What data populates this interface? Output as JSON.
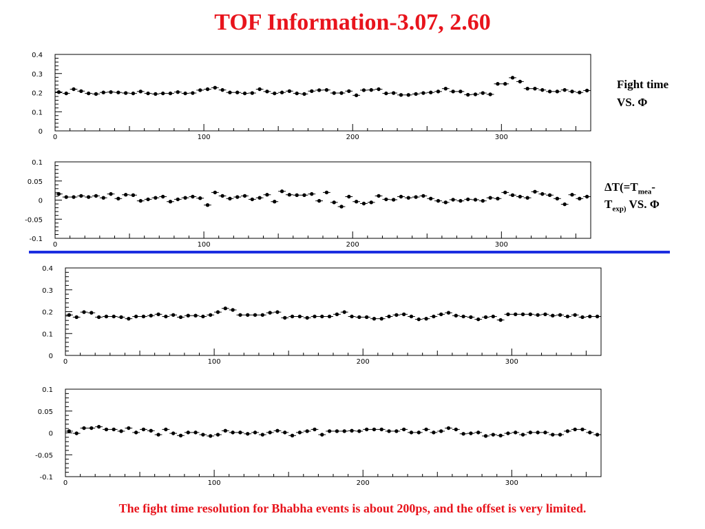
{
  "slide": {
    "title": "TOF Information-3.07, 2.60",
    "fight_label_line1": "Fight time",
    "fight_label_line2": "VS. Φ",
    "dt_label": {
      "delta": "ΔT(=T",
      "sub_mea": "mea",
      "dash": "-",
      "t": "T",
      "sub_exp": "exp)",
      "vs": " VS. Φ"
    },
    "footer": "The fight time resolution for Bhabha events is about 200ps, and the offset is very limited."
  },
  "chart_data": [
    {
      "type": "scatter",
      "title": "",
      "xlim": [
        0,
        360
      ],
      "ylim": [
        0,
        0.4
      ],
      "xticks": [
        "0",
        "100",
        "200",
        "300"
      ],
      "yticks": [
        "0",
        "0.1",
        "0.2",
        "0.3",
        "0.4"
      ],
      "x": [
        2.5,
        7.5,
        12.5,
        17.5,
        22.5,
        27.5,
        32.5,
        37.5,
        42.5,
        47.5,
        52.5,
        57.5,
        62.5,
        67.5,
        72.5,
        77.5,
        82.5,
        87.5,
        92.5,
        97.5,
        102.5,
        107.5,
        112.5,
        117.5,
        122.5,
        127.5,
        132.5,
        137.5,
        142.5,
        147.5,
        152.5,
        157.5,
        162.5,
        167.5,
        172.5,
        177.5,
        182.5,
        187.5,
        192.5,
        197.5,
        202.5,
        207.5,
        212.5,
        217.5,
        222.5,
        227.5,
        232.5,
        237.5,
        242.5,
        247.5,
        252.5,
        257.5,
        262.5,
        267.5,
        272.5,
        277.5,
        282.5,
        287.5,
        292.5,
        297.5,
        302.5,
        307.5,
        312.5,
        317.5,
        322.5,
        327.5,
        332.5,
        337.5,
        342.5,
        347.5,
        352.5,
        357.5
      ],
      "y": [
        0.203,
        0.196,
        0.218,
        0.208,
        0.196,
        0.193,
        0.201,
        0.203,
        0.201,
        0.198,
        0.196,
        0.206,
        0.196,
        0.193,
        0.196,
        0.196,
        0.203,
        0.196,
        0.198,
        0.213,
        0.218,
        0.226,
        0.214,
        0.201,
        0.201,
        0.196,
        0.198,
        0.218,
        0.206,
        0.196,
        0.201,
        0.208,
        0.196,
        0.193,
        0.208,
        0.213,
        0.214,
        0.198,
        0.198,
        0.208,
        0.186,
        0.213,
        0.214,
        0.218,
        0.196,
        0.198,
        0.188,
        0.188,
        0.193,
        0.198,
        0.201,
        0.206,
        0.221,
        0.206,
        0.206,
        0.189,
        0.191,
        0.198,
        0.191,
        0.246,
        0.246,
        0.278,
        0.258,
        0.221,
        0.221,
        0.214,
        0.206,
        0.206,
        0.214,
        0.206,
        0.201,
        0.211
      ],
      "grid": false
    },
    {
      "type": "scatter",
      "title": "",
      "xlim": [
        0,
        360
      ],
      "ylim": [
        -0.1,
        0.1
      ],
      "xticks": [
        "0",
        "100",
        "200",
        "300"
      ],
      "yticks": [
        "-0.1",
        "-0.05",
        "0",
        "0.05",
        "0.1"
      ],
      "x": [
        2.5,
        7.5,
        12.5,
        17.5,
        22.5,
        27.5,
        32.5,
        37.5,
        42.5,
        47.5,
        52.5,
        57.5,
        62.5,
        67.5,
        72.5,
        77.5,
        82.5,
        87.5,
        92.5,
        97.5,
        102.5,
        107.5,
        112.5,
        117.5,
        122.5,
        127.5,
        132.5,
        137.5,
        142.5,
        147.5,
        152.5,
        157.5,
        162.5,
        167.5,
        172.5,
        177.5,
        182.5,
        187.5,
        192.5,
        197.5,
        202.5,
        207.5,
        212.5,
        217.5,
        222.5,
        227.5,
        232.5,
        237.5,
        242.5,
        247.5,
        252.5,
        257.5,
        262.5,
        267.5,
        272.5,
        277.5,
        282.5,
        287.5,
        292.5,
        297.5,
        302.5,
        307.5,
        312.5,
        317.5,
        322.5,
        327.5,
        332.5,
        337.5,
        342.5,
        347.5,
        352.5,
        357.5
      ],
      "y": [
        0.016,
        0.008,
        0.008,
        0.011,
        0.008,
        0.011,
        0.006,
        0.016,
        0.004,
        0.014,
        0.013,
        -0.002,
        0.002,
        0.006,
        0.009,
        -0.004,
        0.002,
        0.006,
        0.009,
        0.005,
        -0.013,
        0.02,
        0.011,
        0.004,
        0.008,
        0.011,
        0.002,
        0.006,
        0.014,
        -0.004,
        0.023,
        0.014,
        0.013,
        0.013,
        0.016,
        -0.002,
        0.02,
        -0.006,
        -0.017,
        0.009,
        -0.004,
        -0.009,
        -0.006,
        0.011,
        0.002,
        0.001,
        0.009,
        0.006,
        0.008,
        0.011,
        0.004,
        -0.002,
        -0.006,
        0.001,
        -0.002,
        0.002,
        0.001,
        -0.002,
        0.006,
        0.004,
        0.02,
        0.013,
        0.009,
        0.006,
        0.022,
        0.016,
        0.013,
        0.004,
        -0.011,
        0.014,
        0.004,
        0.009
      ],
      "grid": false
    },
    {
      "type": "scatter",
      "title": "",
      "xlim": [
        0,
        360
      ],
      "ylim": [
        0,
        0.4
      ],
      "xticks": [
        "0",
        "100",
        "200",
        "300"
      ],
      "yticks": [
        "0",
        "0.1",
        "0.2",
        "0.3",
        "0.4"
      ],
      "x": [
        2.5,
        7.5,
        12.5,
        17.5,
        22.5,
        27.5,
        32.5,
        37.5,
        42.5,
        47.5,
        52.5,
        57.5,
        62.5,
        67.5,
        72.5,
        77.5,
        82.5,
        87.5,
        92.5,
        97.5,
        102.5,
        107.5,
        112.5,
        117.5,
        122.5,
        127.5,
        132.5,
        137.5,
        142.5,
        147.5,
        152.5,
        157.5,
        162.5,
        167.5,
        172.5,
        177.5,
        182.5,
        187.5,
        192.5,
        197.5,
        202.5,
        207.5,
        212.5,
        217.5,
        222.5,
        227.5,
        232.5,
        237.5,
        242.5,
        247.5,
        252.5,
        257.5,
        262.5,
        267.5,
        272.5,
        277.5,
        282.5,
        287.5,
        292.5,
        297.5,
        302.5,
        307.5,
        312.5,
        317.5,
        322.5,
        327.5,
        332.5,
        337.5,
        342.5,
        347.5,
        352.5,
        357.5
      ],
      "y": [
        0.185,
        0.175,
        0.198,
        0.195,
        0.175,
        0.178,
        0.178,
        0.175,
        0.168,
        0.178,
        0.178,
        0.182,
        0.188,
        0.178,
        0.185,
        0.175,
        0.182,
        0.182,
        0.178,
        0.185,
        0.198,
        0.215,
        0.208,
        0.185,
        0.185,
        0.185,
        0.185,
        0.195,
        0.198,
        0.172,
        0.178,
        0.178,
        0.172,
        0.178,
        0.178,
        0.178,
        0.188,
        0.198,
        0.178,
        0.175,
        0.175,
        0.168,
        0.168,
        0.178,
        0.185,
        0.188,
        0.178,
        0.165,
        0.168,
        0.178,
        0.188,
        0.195,
        0.182,
        0.178,
        0.175,
        0.165,
        0.175,
        0.178,
        0.162,
        0.188,
        0.188,
        0.188,
        0.188,
        0.185,
        0.188,
        0.182,
        0.185,
        0.178,
        0.185,
        0.175,
        0.178,
        0.178
      ],
      "grid": false
    },
    {
      "type": "scatter",
      "title": "",
      "xlim": [
        0,
        360
      ],
      "ylim": [
        -0.1,
        0.1
      ],
      "xticks": [
        "0",
        "100",
        "200",
        "300"
      ],
      "yticks": [
        "-0.1",
        "-0.05",
        "0",
        "0.05",
        "0.1"
      ],
      "x": [
        2.5,
        7.5,
        12.5,
        17.5,
        22.5,
        27.5,
        32.5,
        37.5,
        42.5,
        47.5,
        52.5,
        57.5,
        62.5,
        67.5,
        72.5,
        77.5,
        82.5,
        87.5,
        92.5,
        97.5,
        102.5,
        107.5,
        112.5,
        117.5,
        122.5,
        127.5,
        132.5,
        137.5,
        142.5,
        147.5,
        152.5,
        157.5,
        162.5,
        167.5,
        172.5,
        177.5,
        182.5,
        187.5,
        192.5,
        197.5,
        202.5,
        207.5,
        212.5,
        217.5,
        222.5,
        227.5,
        232.5,
        237.5,
        242.5,
        247.5,
        252.5,
        257.5,
        262.5,
        267.5,
        272.5,
        277.5,
        282.5,
        287.5,
        292.5,
        297.5,
        302.5,
        307.5,
        312.5,
        317.5,
        322.5,
        327.5,
        332.5,
        337.5,
        342.5,
        347.5,
        352.5,
        357.5
      ],
      "y": [
        0.004,
        -0.001,
        0.011,
        0.011,
        0.014,
        0.008,
        0.008,
        0.004,
        0.011,
        0.001,
        0.008,
        0.005,
        -0.004,
        0.008,
        -0.001,
        -0.006,
        0.001,
        0.001,
        -0.004,
        -0.007,
        -0.004,
        0.005,
        0.001,
        0.001,
        -0.002,
        0.001,
        -0.004,
        0.001,
        0.005,
        0.001,
        -0.006,
        0.001,
        0.004,
        0.008,
        -0.004,
        0.004,
        0.004,
        0.004,
        0.005,
        0.004,
        0.008,
        0.008,
        0.008,
        0.004,
        0.004,
        0.008,
        0.001,
        0.001,
        0.008,
        0.001,
        0.004,
        0.011,
        0.008,
        -0.002,
        -0.001,
        0.001,
        -0.007,
        -0.004,
        -0.006,
        -0.001,
        0.001,
        -0.004,
        0.001,
        0.001,
        0.001,
        -0.004,
        -0.004,
        0.004,
        0.008,
        0.008,
        0.001,
        -0.004
      ],
      "grid": false
    }
  ]
}
